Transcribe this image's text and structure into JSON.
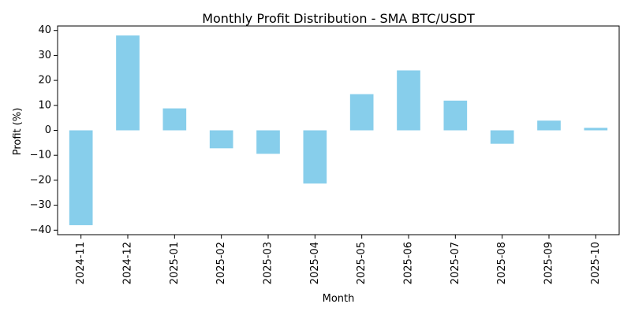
{
  "chart_data": {
    "type": "bar",
    "title": "Monthly Profit Distribution - SMA BTC/USDT",
    "xlabel": "Month",
    "ylabel": "Profit (%)",
    "categories": [
      "2024-11",
      "2024-12",
      "2025-01",
      "2025-02",
      "2025-03",
      "2025-04",
      "2025-05",
      "2025-06",
      "2025-07",
      "2025-08",
      "2025-09",
      "2025-10"
    ],
    "values": [
      -38.0,
      38.0,
      8.8,
      -7.2,
      -9.4,
      -21.3,
      14.5,
      24.0,
      11.9,
      -5.4,
      3.9,
      1.0
    ],
    "ylim": [
      -41.8,
      41.8
    ],
    "yticks": [
      -40,
      -30,
      -20,
      -10,
      0,
      10,
      20,
      30,
      40
    ],
    "ytick_labels": [
      "−40",
      "−30",
      "−20",
      "−10",
      "0",
      "10",
      "20",
      "30",
      "40"
    ],
    "bar_color": "#87ceeb",
    "grid": false,
    "legend": "none"
  }
}
